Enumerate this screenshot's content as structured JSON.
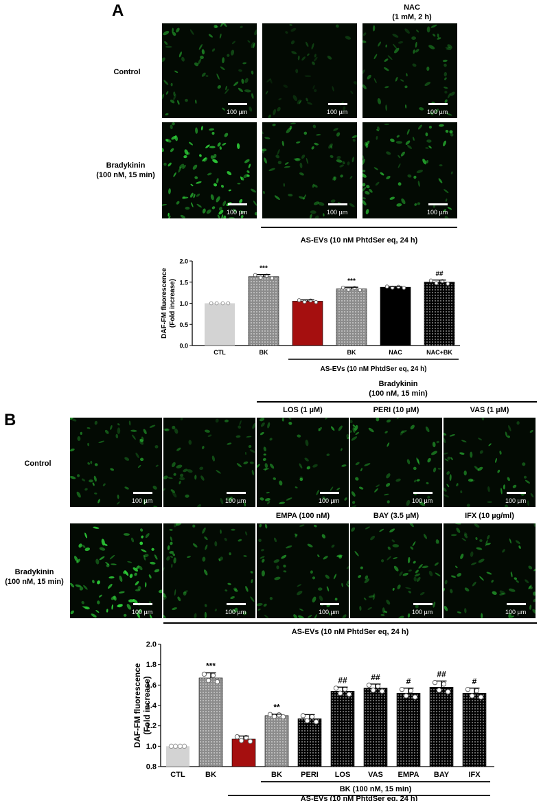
{
  "panel_a": {
    "letter": "A",
    "column_header_nac": "NAC\n(1 mM, 2 h)",
    "row_labels": [
      "Control",
      "Bradykinin\n(100 nM, 15 min)"
    ],
    "scale_bar_label": "100 µm",
    "treatment_bar_label": "AS-EVs (10 nM PhtdSer eq, 24 h)"
  },
  "panel_b": {
    "letter": "B",
    "bradykinin_header": "Bradykinin\n(100 nM, 15 min)",
    "top_column_labels": [
      "LOS (1 µM)",
      "PERI (10 µM)",
      "VAS (1 µM)"
    ],
    "bottom_column_labels": [
      "EMPA (100 nM)",
      "BAY (3.5 µM)",
      "IFX (10 µg/ml)"
    ],
    "row_labels": [
      "Control",
      "Bradykinin\n(100 nM, 15 min)"
    ],
    "scale_bar_label": "100 µm",
    "treatment_bar_label": "AS-EVs (10 nM PhtdSer eq, 24 h)"
  },
  "colors": {
    "ctl": "#d3d3d3",
    "gray_bar": "#8c8c8c",
    "red_bar": "#a50f0f",
    "black_bar": "#000000",
    "cell_green": "#2fd43a"
  },
  "chart_data": [
    {
      "type": "bar",
      "ylabel": "DAF-FM fluorescence\n(Fold increase)",
      "ylim": [
        0.0,
        2.0
      ],
      "yticks": [
        "0.0",
        "0.5",
        "1.0",
        "1.5",
        "2.0"
      ],
      "categories": [
        "CTL",
        "BK",
        "",
        "BK",
        "NAC",
        "NAC+BK"
      ],
      "values": [
        1.0,
        1.63,
        1.05,
        1.34,
        1.38,
        1.5
      ],
      "errors": [
        0.0,
        0.05,
        0.03,
        0.04,
        0.02,
        0.05
      ],
      "annotations": [
        "",
        "***",
        "",
        "***",
        "",
        "##"
      ],
      "bar_styles": [
        "ctl",
        "gray",
        "red",
        "gray",
        "black",
        "black-dots"
      ],
      "group_label": "AS-EVs (10 nM PhtdSer eq, 24 h)"
    },
    {
      "type": "bar",
      "ylabel": "DAF-FM fluorescence\n(Fold increase)",
      "ylim": [
        0.8,
        2.0
      ],
      "yticks": [
        "0.8",
        "1.0",
        "1.2",
        "1.4",
        "1.6",
        "1.8",
        "2.0"
      ],
      "categories": [
        "CTL",
        "BK",
        "",
        "BK",
        "PERI",
        "LOS",
        "VAS",
        "EMPA",
        "BAY",
        "IFX"
      ],
      "values": [
        1.0,
        1.67,
        1.07,
        1.3,
        1.27,
        1.54,
        1.57,
        1.52,
        1.58,
        1.52
      ],
      "errors": [
        0.0,
        0.05,
        0.03,
        0.015,
        0.04,
        0.04,
        0.04,
        0.05,
        0.06,
        0.05
      ],
      "annotations": [
        "",
        "***",
        "",
        "**",
        "",
        "##",
        "##",
        "#",
        "##",
        "#"
      ],
      "bar_styles": [
        "ctl",
        "gray",
        "red",
        "gray",
        "black-dots",
        "black-dots",
        "black-dots",
        "black-dots",
        "black-dots",
        "black-dots"
      ],
      "group_label_bk": "BK (100 nM, 15 min)",
      "group_label": "AS-EVs (10 nM PhtdSer eq, 24 h)"
    }
  ]
}
